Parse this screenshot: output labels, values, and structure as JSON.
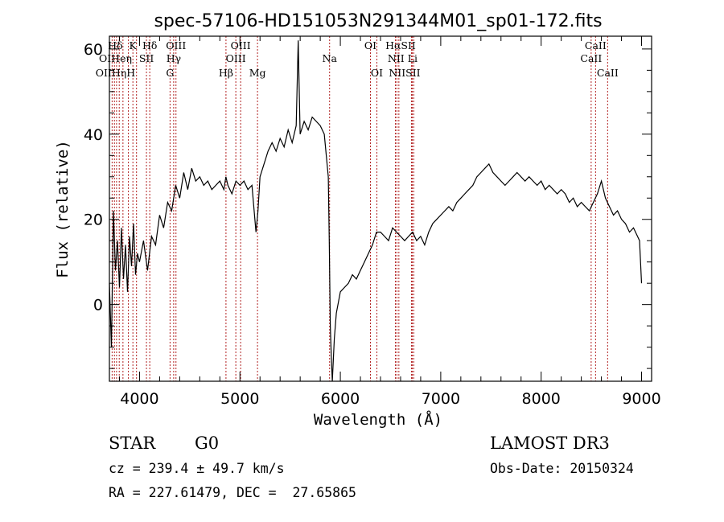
{
  "chart_data": {
    "type": "line",
    "title": "spec-57106-HD151053N291344M01_sp01-172.fits",
    "xlabel": "Wavelength (Å)",
    "ylabel": "Flux (relative)",
    "xlim": [
      3700,
      9100
    ],
    "ylim": [
      -18,
      63
    ],
    "xticks": [
      4000,
      5000,
      6000,
      7000,
      8000,
      9000
    ],
    "yticks": [
      0,
      20,
      40,
      60
    ],
    "series": [
      {
        "name": "spectrum",
        "x": [
          3700,
          3720,
          3740,
          3760,
          3780,
          3800,
          3820,
          3840,
          3860,
          3880,
          3900,
          3920,
          3940,
          3960,
          3980,
          4000,
          4040,
          4080,
          4120,
          4160,
          4200,
          4240,
          4280,
          4320,
          4360,
          4400,
          4440,
          4480,
          4520,
          4560,
          4600,
          4640,
          4680,
          4720,
          4760,
          4800,
          4840,
          4860,
          4880,
          4920,
          4960,
          5000,
          5040,
          5080,
          5120,
          5160,
          5180,
          5200,
          5240,
          5280,
          5320,
          5360,
          5400,
          5440,
          5480,
          5520,
          5560,
          5580,
          5600,
          5640,
          5680,
          5720,
          5760,
          5800,
          5840,
          5880,
          5890,
          5900,
          5910,
          5920,
          5940,
          5960,
          6000,
          6040,
          6080,
          6120,
          6160,
          6200,
          6240,
          6280,
          6320,
          6360,
          6400,
          6440,
          6480,
          6520,
          6560,
          6600,
          6640,
          6680,
          6720,
          6760,
          6800,
          6840,
          6880,
          6920,
          6960,
          7000,
          7040,
          7080,
          7120,
          7160,
          7200,
          7240,
          7280,
          7320,
          7360,
          7400,
          7440,
          7480,
          7520,
          7560,
          7600,
          7640,
          7680,
          7720,
          7760,
          7800,
          7840,
          7880,
          7920,
          7960,
          8000,
          8040,
          8080,
          8120,
          8160,
          8200,
          8240,
          8280,
          8320,
          8360,
          8400,
          8440,
          8480,
          8520,
          8560,
          8600,
          8640,
          8680,
          8720,
          8760,
          8800,
          8840,
          8880,
          8920,
          8960,
          8980,
          9000
        ],
        "y": [
          5,
          -10,
          22,
          8,
          15,
          4,
          18,
          6,
          14,
          3,
          16,
          9,
          19,
          7,
          12,
          10,
          15,
          8,
          16,
          14,
          21,
          18,
          24,
          22,
          28,
          25,
          31,
          27,
          32,
          29,
          30,
          28,
          29,
          27,
          28,
          29,
          27,
          30,
          28,
          26,
          29,
          28,
          29,
          27,
          28,
          17,
          22,
          30,
          33,
          36,
          38,
          36,
          39,
          37,
          41,
          38,
          42,
          62,
          40,
          43,
          41,
          44,
          43,
          42,
          40,
          30,
          15,
          -5,
          -12,
          -19,
          -8,
          -2,
          3,
          4,
          5,
          7,
          6,
          8,
          10,
          12,
          14,
          17,
          17,
          16,
          15,
          18,
          17,
          16,
          15,
          16,
          17,
          15,
          16,
          14,
          17,
          19,
          20,
          21,
          22,
          23,
          22,
          24,
          25,
          26,
          27,
          28,
          30,
          31,
          32,
          33,
          31,
          30,
          29,
          28,
          29,
          30,
          31,
          30,
          29,
          30,
          29,
          28,
          29,
          27,
          28,
          27,
          26,
          27,
          26,
          24,
          25,
          23,
          24,
          23,
          22,
          24,
          26,
          29,
          25,
          23,
          21,
          22,
          20,
          19,
          17,
          18,
          16,
          15,
          5
        ]
      }
    ],
    "annotations": [
      {
        "text": "Hδ",
        "x": 3760,
        "row": 1
      },
      {
        "text": "K",
        "x": 3934,
        "row": 1
      },
      {
        "text": "Hδ",
        "x": 4102,
        "row": 1
      },
      {
        "text": "OIII",
        "x": 4363,
        "row": 1
      },
      {
        "text": "OIII",
        "x": 5007,
        "row": 1
      },
      {
        "text": "OI",
        "x": 6300,
        "row": 1
      },
      {
        "text": "HαSII",
        "x": 6600,
        "row": 1
      },
      {
        "text": "CaII",
        "x": 8542,
        "row": 1
      },
      {
        "text": "OIHeη",
        "x": 3760,
        "row": 2
      },
      {
        "text": "SII",
        "x": 4069,
        "row": 2
      },
      {
        "text": "Hγ",
        "x": 4340,
        "row": 2
      },
      {
        "text": "OIII",
        "x": 4959,
        "row": 2
      },
      {
        "text": "Na",
        "x": 5893,
        "row": 2
      },
      {
        "text": "NII Li",
        "x": 6620,
        "row": 2
      },
      {
        "text": "CaII",
        "x": 8498,
        "row": 2
      },
      {
        "text": "OIIHηH",
        "x": 3760,
        "row": 3
      },
      {
        "text": "G",
        "x": 4304,
        "row": 3
      },
      {
        "text": "Hβ",
        "x": 4861,
        "row": 3
      },
      {
        "text": "Mg",
        "x": 5175,
        "row": 3
      },
      {
        "text": "OI",
        "x": 6364,
        "row": 3
      },
      {
        "text": "NIISII",
        "x": 6640,
        "row": 3
      },
      {
        "text": "CaII",
        "x": 8662,
        "row": 3
      }
    ],
    "lines": [
      3727,
      3750,
      3771,
      3798,
      3835,
      3889,
      3934,
      3970,
      4069,
      4102,
      4304,
      4340,
      4363,
      4861,
      4959,
      5007,
      5175,
      5893,
      6300,
      6364,
      6548,
      6563,
      6583,
      6708,
      6716,
      6731,
      8498,
      8542,
      8662
    ]
  },
  "info": {
    "object_type": "STAR",
    "subclass": "G0",
    "survey": "LAMOST DR3",
    "cz": "cz = 239.4 ± 49.7 km/s",
    "obs_date": "Obs-Date: 20150324",
    "coords": "RA = 227.61479, DEC =  27.65865"
  },
  "colors": {
    "spectrum": "#000000",
    "line_markers": "#b22222",
    "background": "#ffffff"
  }
}
